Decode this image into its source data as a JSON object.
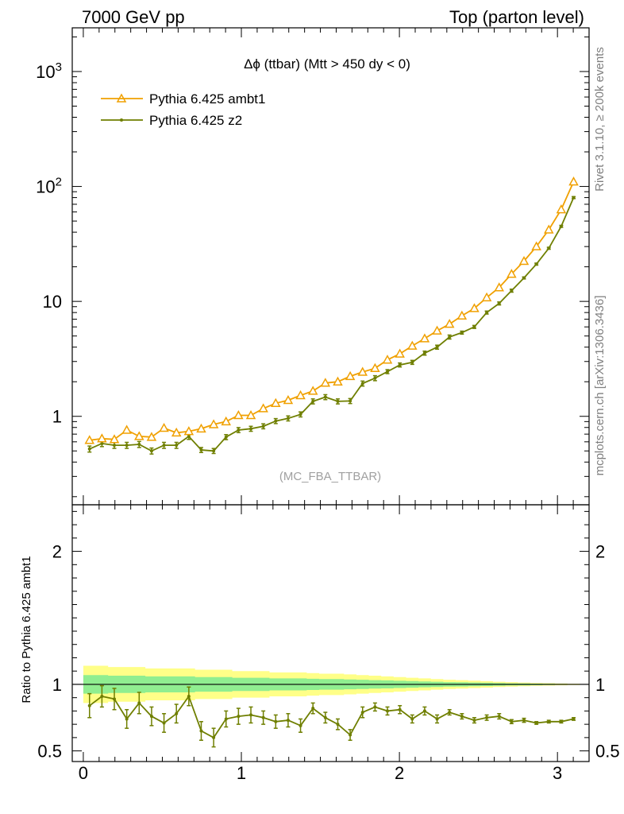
{
  "header": {
    "left": "7000 GeV pp",
    "right": "Top (parton level)"
  },
  "side_labels": {
    "rivet": "Rivet 3.1.10, ≥ 200k events",
    "mcplots": "mcplots.cern.ch [arXiv:1306.3436]"
  },
  "chart_data": [
    {
      "type": "line",
      "title": "Δϕ (ttbar) (Mtt > 450 dy < 0)",
      "watermark": "(MC_FBA_TTBAR)",
      "xlabel": "",
      "ylabel": "",
      "yscale": "log",
      "xlim": [
        -0.07,
        3.2
      ],
      "ylim": [
        0.17,
        2400
      ],
      "y_ticks": [
        "1",
        "10",
        "10^2",
        "10^3"
      ],
      "legend": "top-left",
      "colors": {
        "ambt1": "#f0a000",
        "z2": "#6f7f00"
      },
      "x": [
        0.0393,
        0.1178,
        0.1963,
        0.2749,
        0.3534,
        0.432,
        0.5105,
        0.589,
        0.6676,
        0.7461,
        0.8247,
        0.9032,
        0.9817,
        1.0603,
        1.1388,
        1.2174,
        1.2959,
        1.3744,
        1.453,
        1.5315,
        1.6101,
        1.6886,
        1.7671,
        1.8457,
        1.9242,
        2.0028,
        2.0813,
        2.1598,
        2.2384,
        2.3169,
        2.3955,
        2.474,
        2.5525,
        2.6311,
        2.7096,
        2.7882,
        2.8667,
        2.9452,
        3.0238,
        3.1023
      ],
      "series": [
        {
          "name": "Pythia 6.425 ambt1",
          "marker": "open-triangle",
          "values": [
            0.62,
            0.64,
            0.63,
            0.76,
            0.67,
            0.66,
            0.79,
            0.72,
            0.74,
            0.78,
            0.85,
            0.9,
            1.02,
            1.02,
            1.17,
            1.3,
            1.38,
            1.52,
            1.66,
            1.95,
            2.0,
            2.23,
            2.43,
            2.62,
            3.1,
            3.5,
            4.1,
            4.75,
            5.55,
            6.35,
            7.5,
            8.7,
            10.8,
            13.2,
            17.3,
            22.4,
            30.0,
            42.0,
            63.0,
            110.0
          ]
        },
        {
          "name": "Pythia 6.425 z2",
          "marker": "dot-with-error-bars",
          "values": [
            0.52,
            0.58,
            0.56,
            0.56,
            0.57,
            0.5,
            0.56,
            0.56,
            0.67,
            0.51,
            0.5,
            0.66,
            0.76,
            0.78,
            0.82,
            0.91,
            0.96,
            1.04,
            1.35,
            1.47,
            1.35,
            1.36,
            1.93,
            2.15,
            2.45,
            2.8,
            2.95,
            3.55,
            4.0,
            4.9,
            5.35,
            6.0,
            8.0,
            9.6,
            12.4,
            16.0,
            21.1,
            29.0,
            45.0,
            80.0
          ],
          "errors": [
            0.06,
            0.06,
            0.06,
            0.06,
            0.06,
            0.06,
            0.06,
            0.06,
            0.06,
            0.05,
            0.05,
            0.05,
            0.05,
            0.05,
            0.05,
            0.05,
            0.05,
            0.05,
            0.05,
            0.05,
            0.05,
            0.05,
            0.05,
            0.05,
            0.04,
            0.04,
            0.04,
            0.04,
            0.04,
            0.04,
            0.03,
            0.03,
            0.03,
            0.03,
            0.03,
            0.02,
            0.02,
            0.02,
            0.02,
            0.02
          ]
        }
      ]
    },
    {
      "type": "line",
      "title": "",
      "xlabel": "",
      "ylabel": "Ratio to Pythia 6.425 ambt1",
      "xlim": [
        -0.07,
        3.2
      ],
      "ylim": [
        0.42,
        2.35
      ],
      "y_ticks": [
        "0.5",
        "1",
        "2"
      ],
      "x_ticks": [
        "0",
        "1",
        "2",
        "3"
      ],
      "colors": {
        "band_outer": "#ffff88",
        "band_inner": "#90ee90",
        "ratio": "#6f7f00"
      },
      "x": [
        0.0393,
        0.1178,
        0.1963,
        0.2749,
        0.3534,
        0.432,
        0.5105,
        0.589,
        0.6676,
        0.7461,
        0.8247,
        0.9032,
        0.9817,
        1.0603,
        1.1388,
        1.2174,
        1.2959,
        1.3744,
        1.453,
        1.5315,
        1.6101,
        1.6886,
        1.7671,
        1.8457,
        1.9242,
        2.0028,
        2.0813,
        2.1598,
        2.2384,
        2.3169,
        2.3955,
        2.474,
        2.5525,
        2.6311,
        2.7096,
        2.7882,
        2.8667,
        2.9452,
        3.0238,
        3.1023
      ],
      "reference_band": {
        "outer_halfwidth": [
          0.14,
          0.14,
          0.13,
          0.13,
          0.13,
          0.12,
          0.12,
          0.12,
          0.12,
          0.11,
          0.11,
          0.11,
          0.1,
          0.1,
          0.1,
          0.09,
          0.09,
          0.09,
          0.085,
          0.08,
          0.08,
          0.075,
          0.07,
          0.065,
          0.06,
          0.055,
          0.05,
          0.045,
          0.04,
          0.035,
          0.032,
          0.028,
          0.024,
          0.02,
          0.017,
          0.014,
          0.011,
          0.009,
          0.007,
          0.005
        ],
        "inner_halfwidth": [
          0.07,
          0.07,
          0.065,
          0.065,
          0.065,
          0.06,
          0.06,
          0.06,
          0.06,
          0.055,
          0.055,
          0.055,
          0.05,
          0.05,
          0.05,
          0.045,
          0.045,
          0.045,
          0.042,
          0.04,
          0.04,
          0.037,
          0.035,
          0.032,
          0.03,
          0.027,
          0.025,
          0.022,
          0.02,
          0.017,
          0.016,
          0.014,
          0.012,
          0.01,
          0.008,
          0.007,
          0.0055,
          0.0045,
          0.0035,
          0.0025
        ]
      },
      "series": [
        {
          "name": "Pythia 6.425 z2",
          "values": [
            0.84,
            0.91,
            0.89,
            0.74,
            0.86,
            0.76,
            0.71,
            0.78,
            0.91,
            0.65,
            0.6,
            0.74,
            0.76,
            0.77,
            0.75,
            0.72,
            0.73,
            0.69,
            0.82,
            0.75,
            0.7,
            0.62,
            0.79,
            0.83,
            0.8,
            0.81,
            0.74,
            0.8,
            0.74,
            0.79,
            0.76,
            0.73,
            0.75,
            0.76,
            0.72,
            0.73,
            0.71,
            0.72,
            0.72,
            0.74
          ],
          "errors": [
            0.09,
            0.08,
            0.08,
            0.07,
            0.08,
            0.07,
            0.07,
            0.07,
            0.07,
            0.07,
            0.07,
            0.06,
            0.06,
            0.06,
            0.05,
            0.05,
            0.05,
            0.05,
            0.04,
            0.04,
            0.04,
            0.04,
            0.04,
            0.03,
            0.03,
            0.03,
            0.03,
            0.03,
            0.03,
            0.02,
            0.02,
            0.02,
            0.02,
            0.02,
            0.015,
            0.015,
            0.01,
            0.01,
            0.01,
            0.01
          ]
        }
      ]
    }
  ]
}
